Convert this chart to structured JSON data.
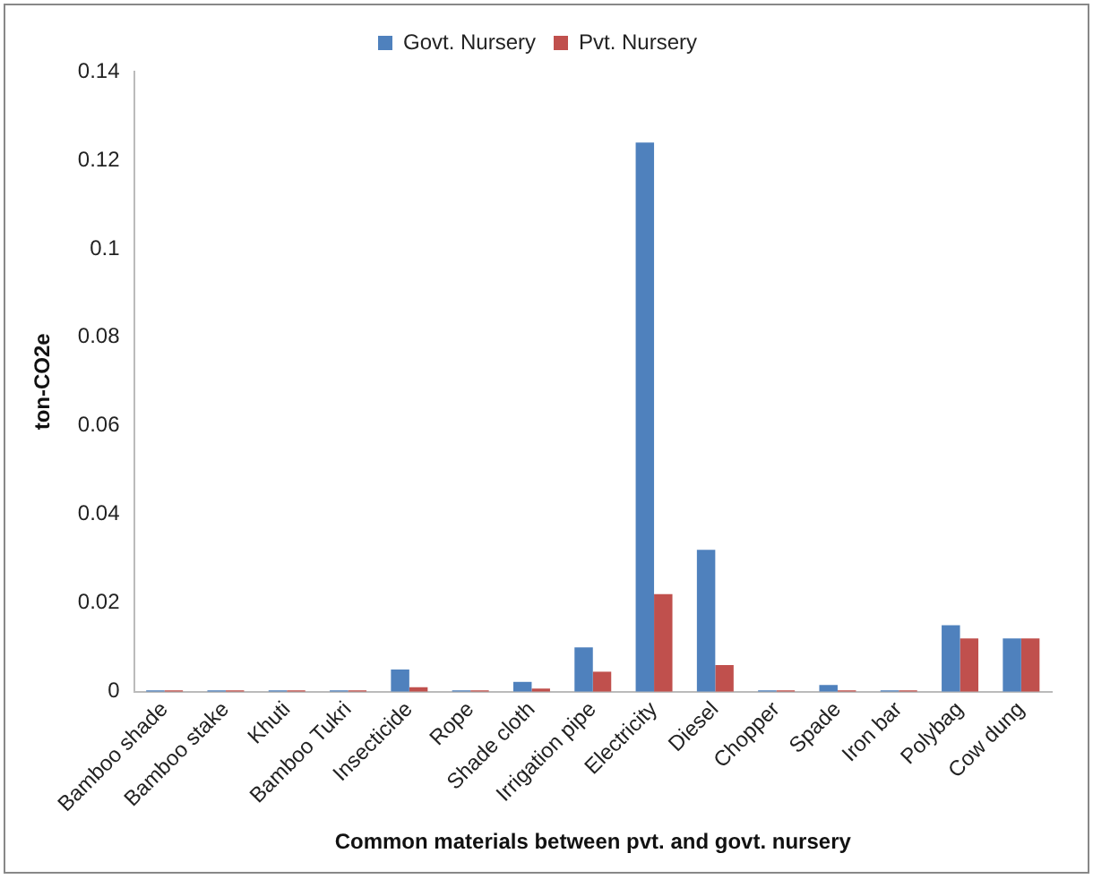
{
  "chart_data": {
    "type": "bar",
    "xlabel": "Common materials between pvt. and govt. nursery",
    "ylabel": "ton-CO2e",
    "categories": [
      "Bamboo shade",
      "Bamboo stake",
      "Khuti",
      "Bamboo Tukri",
      "Insecticide",
      "Rope",
      "Shade cloth",
      "Irrigation pipe",
      "Electricity",
      "Diesel",
      "Chopper",
      "Spade",
      "Iron bar",
      "Polybag",
      "Cow dung"
    ],
    "series": [
      {
        "name": "Govt. Nursery",
        "color": "#4f81bd",
        "values": [
          0.0003,
          0.0003,
          0.0003,
          0.0003,
          0.005,
          0.0003,
          0.0022,
          0.01,
          0.124,
          0.032,
          0.0003,
          0.0015,
          0.0003,
          0.015,
          0.012
        ]
      },
      {
        "name": "Pvt. Nursery",
        "color": "#c0504d",
        "values": [
          0.0003,
          0.0003,
          0.0003,
          0.0003,
          0.001,
          0.0003,
          0.0007,
          0.0045,
          0.022,
          0.006,
          0.0003,
          0.0003,
          0.0003,
          0.012,
          0.012
        ]
      }
    ],
    "ylim": [
      0,
      0.14
    ],
    "yticks": [
      0,
      0.02,
      0.04,
      0.06,
      0.08,
      0.1,
      0.12,
      0.14
    ],
    "grid": false,
    "legend": "top"
  }
}
